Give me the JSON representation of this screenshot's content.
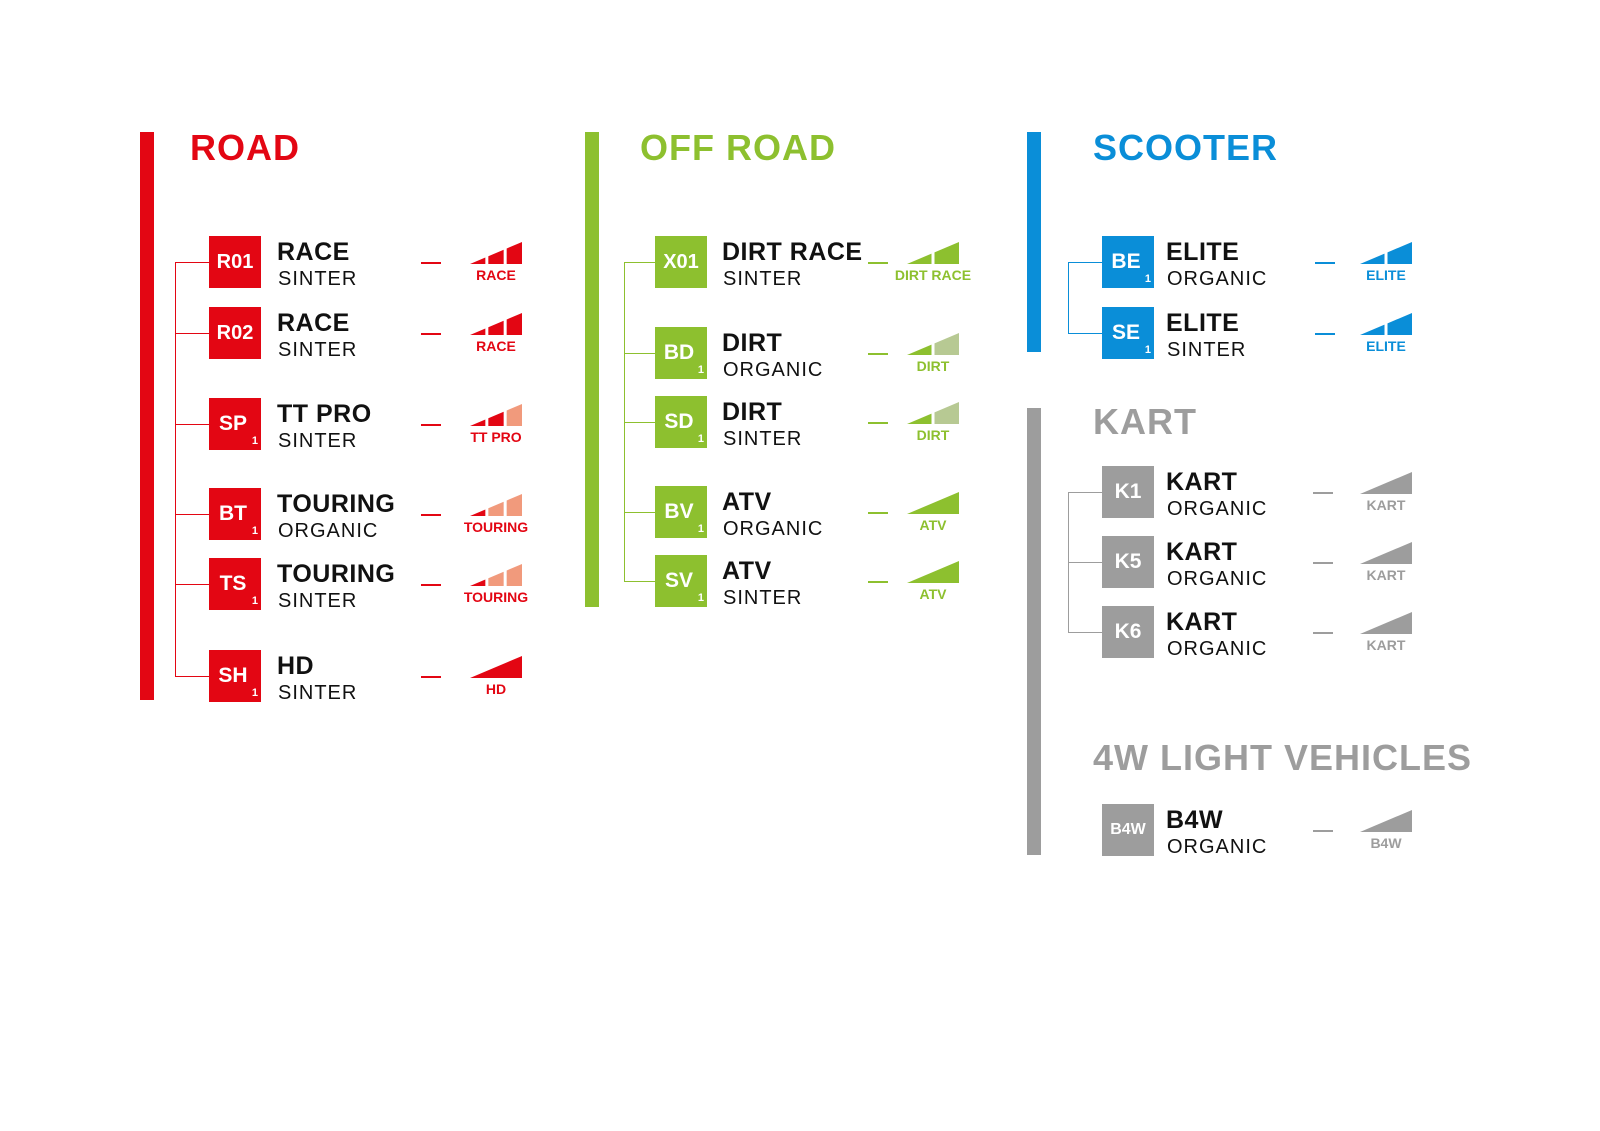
{
  "sections": [
    {
      "title": "ROAD",
      "color": "#e30613",
      "light": "#f19a7c",
      "items": [
        {
          "code": "R01",
          "sub": "",
          "name": "RACE",
          "material": "SINTER",
          "ramp": {
            "segments": 3,
            "filled": 3,
            "label": "RACE"
          }
        },
        {
          "code": "R02",
          "sub": "",
          "name": "RACE",
          "material": "SINTER",
          "ramp": {
            "segments": 3,
            "filled": 3,
            "label": "RACE"
          }
        },
        {
          "code": "SP",
          "sub": "1",
          "name": "TT PRO",
          "material": "SINTER",
          "ramp": {
            "segments": 3,
            "filled": 2,
            "label": "TT PRO"
          }
        },
        {
          "code": "BT",
          "sub": "1",
          "name": "TOURING",
          "material": "ORGANIC",
          "ramp": {
            "segments": 3,
            "filled": 1,
            "label": "TOURING"
          }
        },
        {
          "code": "TS",
          "sub": "1",
          "name": "TOURING",
          "material": "SINTER",
          "ramp": {
            "segments": 3,
            "filled": 1,
            "label": "TOURING"
          }
        },
        {
          "code": "SH",
          "sub": "1",
          "name": "HD",
          "material": "SINTER",
          "ramp": {
            "segments": 1,
            "filled": 1,
            "label": "HD"
          }
        }
      ]
    },
    {
      "title": "OFF ROAD",
      "color": "#8dc02f",
      "light": "#b7c993",
      "items": [
        {
          "code": "X01",
          "sub": "",
          "name": "DIRT RACE",
          "material": "SINTER",
          "ramp": {
            "segments": 2,
            "filled": 2,
            "label": "DIRT RACE"
          }
        },
        {
          "code": "BD",
          "sub": "1",
          "name": "DIRT",
          "material": "ORGANIC",
          "ramp": {
            "segments": 2,
            "filled": 1,
            "label": "DIRT"
          }
        },
        {
          "code": "SD",
          "sub": "1",
          "name": "DIRT",
          "material": "SINTER",
          "ramp": {
            "segments": 2,
            "filled": 1,
            "label": "DIRT"
          }
        },
        {
          "code": "BV",
          "sub": "1",
          "name": "ATV",
          "material": "ORGANIC",
          "ramp": {
            "segments": 1,
            "filled": 1,
            "label": "ATV"
          }
        },
        {
          "code": "SV",
          "sub": "1",
          "name": "ATV",
          "material": "SINTER",
          "ramp": {
            "segments": 1,
            "filled": 1,
            "label": "ATV"
          }
        }
      ]
    },
    {
      "title": "SCOOTER",
      "color": "#0a8ed8",
      "light": "#8cc7ec",
      "items": [
        {
          "code": "BE",
          "sub": "1",
          "name": "ELITE",
          "material": "ORGANIC",
          "ramp": {
            "segments": 2,
            "filled": 2,
            "label": "ELITE"
          }
        },
        {
          "code": "SE",
          "sub": "1",
          "name": "ELITE",
          "material": "SINTER",
          "ramp": {
            "segments": 2,
            "filled": 2,
            "label": "ELITE"
          }
        }
      ]
    },
    {
      "title": "KART",
      "color": "#9d9d9d",
      "light": "#cfcfcf",
      "items": [
        {
          "code": "K1",
          "sub": "",
          "name": "KART",
          "material": "ORGANIC",
          "ramp": {
            "segments": 1,
            "filled": 1,
            "label": "KART"
          }
        },
        {
          "code": "K5",
          "sub": "",
          "name": "KART",
          "material": "ORGANIC",
          "ramp": {
            "segments": 1,
            "filled": 1,
            "label": "KART"
          }
        },
        {
          "code": "K6",
          "sub": "",
          "name": "KART",
          "material": "ORGANIC",
          "ramp": {
            "segments": 1,
            "filled": 1,
            "label": "KART"
          }
        }
      ]
    },
    {
      "title": "4W LIGHT VEHICLES",
      "color": "#9d9d9d",
      "light": "#cfcfcf",
      "items": [
        {
          "code": "B4W",
          "sub": "",
          "name": "B4W",
          "material": "ORGANIC",
          "ramp": {
            "segments": 1,
            "filled": 1,
            "label": "B4W"
          }
        }
      ]
    }
  ]
}
